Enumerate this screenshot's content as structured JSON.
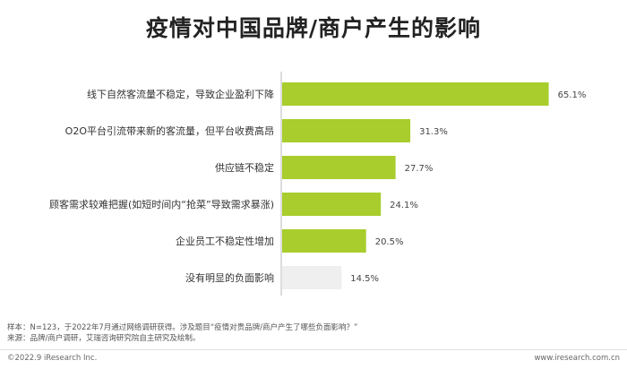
{
  "chart_data": {
    "type": "bar",
    "orientation": "horizontal",
    "title": "疫情对中国品牌/商户产生的影响",
    "categories": [
      "线下自然客流量不稳定，导致企业盈利下降",
      "O2O平台引流带来新的客流量，但平台收费高昂",
      "供应链不稳定",
      "顾客需求较难把握(如短时间内“抢菜”导致需求暴涨)",
      "企业员工不稳定性增加",
      "没有明显的负面影响"
    ],
    "values": [
      65.1,
      31.3,
      27.7,
      24.1,
      20.5,
      14.5
    ],
    "value_labels": [
      "65.1%",
      "31.3%",
      "27.7%",
      "24.1%",
      "20.5%",
      "14.5%"
    ],
    "unit": "%",
    "xlim": [
      0,
      70
    ],
    "grid": false,
    "colors": {
      "highlight": "#a8cd2c",
      "neutral": "#efefef",
      "axis": "#bbbbbb"
    }
  },
  "notes": {
    "sample": "样本：N=123，于2022年7月通过网络调研获得。涉及题目“疫情对贵品牌/商户产生了哪些负面影响？”",
    "source": "来源：品牌/商户调研，艾瑞咨询研究院自主研究及绘制。"
  },
  "footer": {
    "copyright": "©2022.9 iResearch Inc.",
    "website": "www.iresearch.com.cn"
  }
}
